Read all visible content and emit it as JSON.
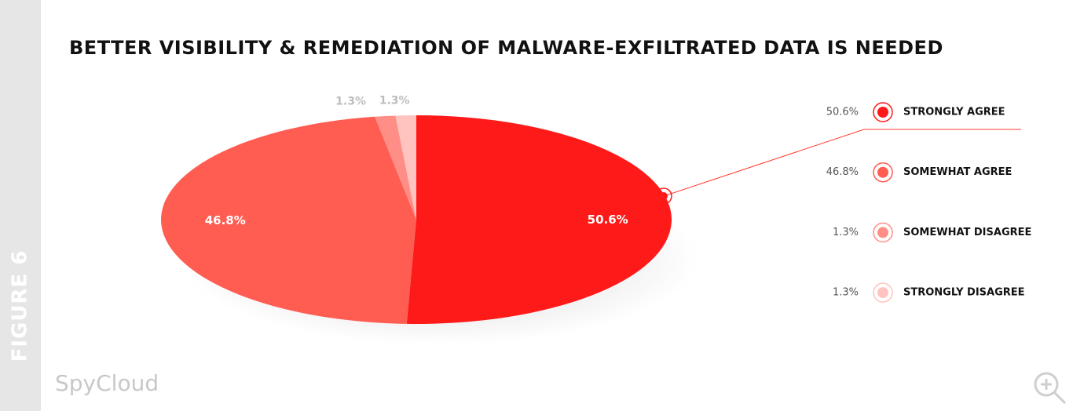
{
  "figure_label": "FIGURE 6",
  "brand": "SpyCloud",
  "chart_data": {
    "type": "pie",
    "title": "BETTER VISIBILITY & REMEDIATION OF MALWARE-EXFILTRATED DATA IS NEEDED",
    "categories": [
      "STRONGLY AGREE",
      "SOMEWHAT AGREE",
      "SOMEWHAT DISAGREE",
      "STRONGLY DISAGREE"
    ],
    "values": [
      50.6,
      46.8,
      1.3,
      1.3
    ],
    "value_labels": [
      "50.6%",
      "46.8%",
      "1.3%",
      "1.3%"
    ],
    "colors": [
      "#ff1a1a",
      "#ff5c52",
      "#ff8f86",
      "#ffc4bf"
    ],
    "legend": "right"
  }
}
